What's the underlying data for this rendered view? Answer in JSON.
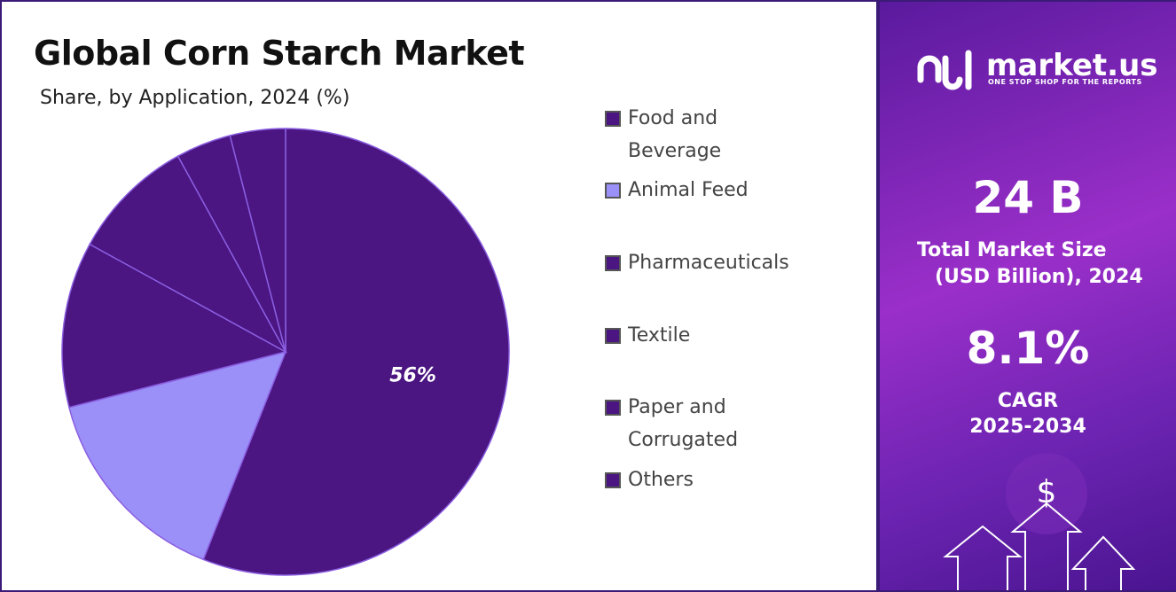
{
  "chart_data": {
    "type": "pie",
    "title": "Global Corn Starch Market",
    "subtitle": "Share, by Application, 2024 (%)",
    "categories": [
      "Food and Beverage",
      "Animal Feed",
      "Pharmaceuticals",
      "Textile",
      "Paper and Corrugated",
      "Others"
    ],
    "values": [
      56,
      15,
      12,
      9,
      4,
      4
    ],
    "value_labels": [
      "56%",
      null,
      null,
      null,
      null,
      null
    ],
    "colors": [
      "#4b1682",
      "#9b8ff8",
      "#4b1682",
      "#4b1682",
      "#4b1682",
      "#4b1682"
    ]
  },
  "side_panel": {
    "brand": "market.us",
    "tagline": "ONE STOP SHOP FOR THE REPORTS",
    "market_size": "24 B",
    "market_size_label_1": "Total Market Size",
    "market_size_label_2": "(USD Billion), 2024",
    "cagr": "8.1%",
    "cagr_label_1": "CAGR",
    "cagr_label_2": "2025-2034"
  }
}
